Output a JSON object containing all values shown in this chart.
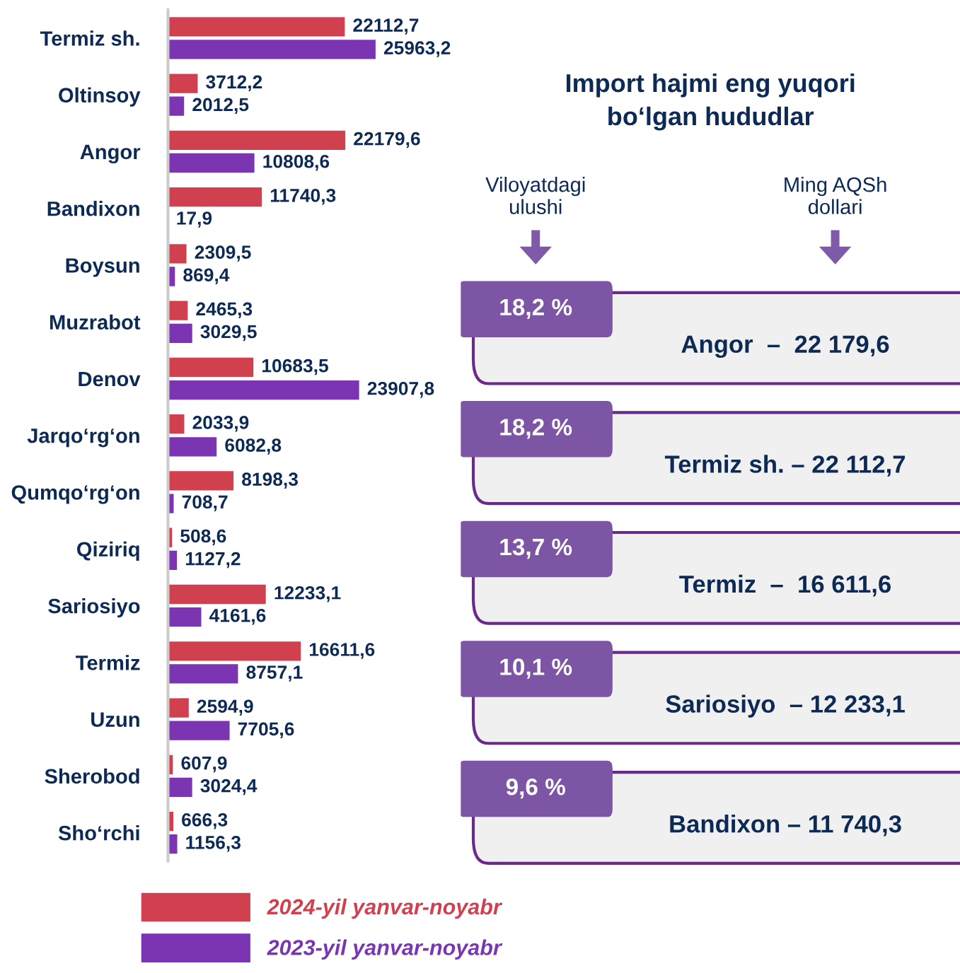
{
  "chart_data": [
    {
      "type": "bar",
      "orientation": "horizontal",
      "legend": "bottom",
      "categories": [
        "Termiz sh.",
        "Oltinsoy",
        "Angor",
        "Bandixon",
        "Boysun",
        "Muzrabot",
        "Denov",
        "Jarqo‘rg‘on",
        "Qumqo‘rg‘on",
        "Qiziriq",
        "Sariosiyo",
        "Termiz",
        "Uzun",
        "Sherobod",
        "Sho‘rchi"
      ],
      "series": [
        {
          "name": "2024-yil yanvar-noyabr",
          "color": "#d0404f",
          "values": [
            22112.7,
            3712.2,
            22179.6,
            11740.3,
            2309.5,
            2465.3,
            10683.5,
            2033.9,
            8198.3,
            508.6,
            12233.1,
            16611.6,
            2594.9,
            607.9,
            666.3
          ],
          "value_labels": [
            "22112,7",
            "3712,2",
            "22179,6",
            "11740,3",
            "2309,5",
            "2465,3",
            "10683,5",
            "2033,9",
            "8198,3",
            "508,6",
            "12233,1",
            "16611,6",
            "2594,9",
            "607,9",
            "666,3"
          ]
        },
        {
          "name": "2023-yil yanvar-noyabr",
          "color": "#7b35b3",
          "values": [
            25963.2,
            2012.5,
            10808.6,
            17.9,
            869.4,
            3029.5,
            23907.8,
            6082.8,
            708.7,
            1127.2,
            4161.6,
            8757.1,
            7705.6,
            3024.4,
            1156.3
          ],
          "value_labels": [
            "25963,2",
            "2012,5",
            "10808,6",
            "17,9",
            "869,4",
            "3029,5",
            "23907,8",
            "6082,8",
            "708,7",
            "1127,2",
            "4161,6",
            "8757,1",
            "7705,6",
            "3024,4",
            "1156,3"
          ]
        }
      ]
    },
    {
      "type": "other",
      "title": "Import hajmi eng yuqori\nbo‘lgan hududlar",
      "annotations": [
        "Viloyatdagi\nulushi",
        "Ming AQSh\ndollari",
        "18,2 %",
        "Angor  –  22 179,6",
        "18,2 %",
        "Termiz sh. – 22 112,7",
        "13,7 %",
        "Termiz  –  16 611,6",
        "10,1 %",
        "Sariosiyo  – 12 233,1",
        "9,6 %",
        "Bandixon – 11 740,3"
      ]
    }
  ]
}
